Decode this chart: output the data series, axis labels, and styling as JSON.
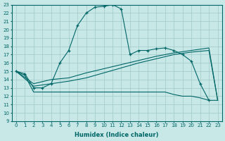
{
  "xlabel": "Humidex (Indice chaleur)",
  "xlim": [
    -0.5,
    23.5
  ],
  "ylim": [
    9,
    23
  ],
  "yticks": [
    9,
    10,
    11,
    12,
    13,
    14,
    15,
    16,
    17,
    18,
    19,
    20,
    21,
    22,
    23
  ],
  "xticks": [
    0,
    1,
    2,
    3,
    4,
    5,
    6,
    7,
    8,
    9,
    10,
    11,
    12,
    13,
    14,
    15,
    16,
    17,
    18,
    19,
    20,
    21,
    22,
    23
  ],
  "bg_color": "#c8e8e8",
  "line_color": "#006666",
  "grid_color": "#a0c8c8",
  "lines": [
    {
      "x": [
        0,
        1,
        2,
        3,
        4,
        5,
        6,
        7,
        8,
        9,
        10,
        11,
        12,
        13,
        14,
        15,
        16,
        17,
        18,
        19,
        20,
        21,
        22,
        23
      ],
      "y": [
        15.0,
        14.7,
        13.0,
        13.0,
        13.5,
        16.0,
        17.5,
        20.5,
        22.0,
        22.7,
        22.8,
        23.0,
        22.5,
        17.0,
        17.5,
        17.5,
        17.7,
        17.8,
        17.5,
        17.0,
        16.2,
        13.5,
        11.5,
        null
      ],
      "marker": true
    },
    {
      "x": [
        0,
        1,
        2,
        3,
        4,
        5,
        6,
        7,
        8,
        9,
        10,
        11,
        12,
        13,
        14,
        15,
        16,
        17,
        18,
        19,
        20,
        21,
        22,
        23
      ],
      "y": [
        15.0,
        14.5,
        12.5,
        12.5,
        12.5,
        12.5,
        12.5,
        12.5,
        12.5,
        12.5,
        12.5,
        12.5,
        12.5,
        12.5,
        12.5,
        12.5,
        12.5,
        12.5,
        12.2,
        12.0,
        12.0,
        11.8,
        11.5,
        11.5
      ],
      "marker": false
    },
    {
      "x": [
        0,
        2,
        4,
        6,
        8,
        10,
        12,
        14,
        16,
        18,
        20,
        22,
        23
      ],
      "y": [
        15.0,
        13.2,
        13.5,
        13.8,
        14.2,
        14.8,
        15.4,
        16.0,
        16.5,
        17.0,
        17.3,
        17.5,
        11.5
      ],
      "marker": false
    },
    {
      "x": [
        0,
        2,
        4,
        6,
        8,
        10,
        12,
        14,
        16,
        18,
        20,
        22,
        23
      ],
      "y": [
        15.0,
        13.5,
        14.0,
        14.2,
        14.8,
        15.3,
        15.8,
        16.3,
        16.8,
        17.2,
        17.5,
        17.8,
        11.5
      ],
      "marker": false
    }
  ]
}
